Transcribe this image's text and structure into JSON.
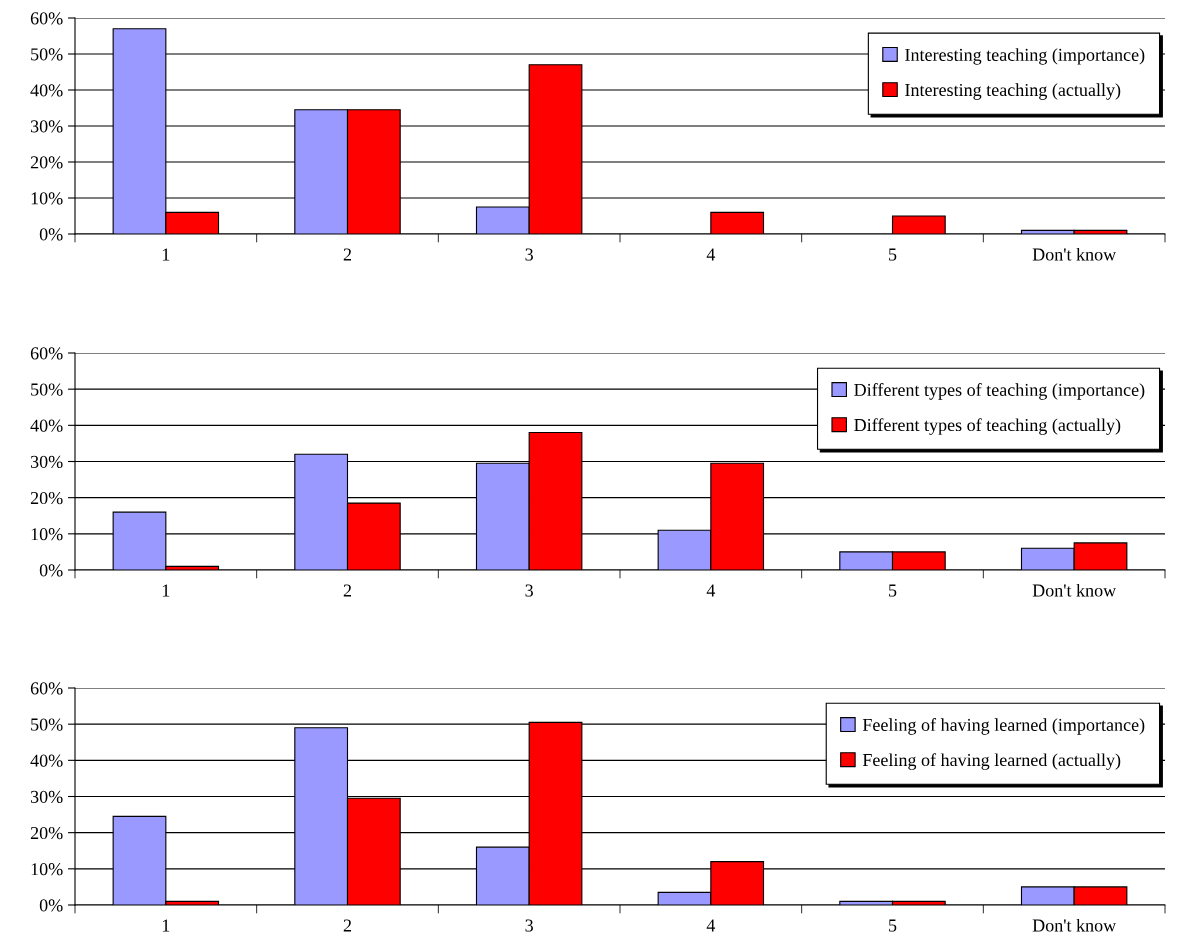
{
  "chart_data": [
    {
      "type": "bar",
      "categories": [
        "1",
        "2",
        "3",
        "4",
        "5",
        "Don't know"
      ],
      "ylim": [
        0,
        60
      ],
      "yticks": [
        {
          "value": 0,
          "label": "0%"
        },
        {
          "value": 10,
          "label": "10%"
        },
        {
          "value": 20,
          "label": "20%"
        },
        {
          "value": 30,
          "label": "30%"
        },
        {
          "value": 40,
          "label": "40%"
        },
        {
          "value": 50,
          "label": "50%"
        },
        {
          "value": 60,
          "label": "60%"
        }
      ],
      "grid": "y",
      "legend": "top right",
      "series": [
        {
          "name": "Interesting teaching (importance)",
          "color": "#9999ff",
          "values": [
            57,
            34.5,
            7.5,
            0,
            0,
            1
          ]
        },
        {
          "name": "Interesting teaching (actually)",
          "color": "#ff0000",
          "values": [
            6,
            34.5,
            47,
            6,
            5,
            1
          ]
        }
      ]
    },
    {
      "type": "bar",
      "categories": [
        "1",
        "2",
        "3",
        "4",
        "5",
        "Don't know"
      ],
      "ylim": [
        0,
        60
      ],
      "yticks": [
        {
          "value": 0,
          "label": "0%"
        },
        {
          "value": 10,
          "label": "10%"
        },
        {
          "value": 20,
          "label": "20%"
        },
        {
          "value": 30,
          "label": "30%"
        },
        {
          "value": 40,
          "label": "40%"
        },
        {
          "value": 50,
          "label": "50%"
        },
        {
          "value": 60,
          "label": "60%"
        }
      ],
      "grid": "y",
      "legend": "top right",
      "series": [
        {
          "name": "Different types of teaching (importance)",
          "color": "#9999ff",
          "values": [
            16,
            32,
            29.5,
            11,
            5,
            6
          ]
        },
        {
          "name": "Different types of teaching (actually)",
          "color": "#ff0000",
          "values": [
            1,
            18.5,
            38,
            29.5,
            5,
            7.5
          ]
        }
      ]
    },
    {
      "type": "bar",
      "categories": [
        "1",
        "2",
        "3",
        "4",
        "5",
        "Don't know"
      ],
      "ylim": [
        0,
        60
      ],
      "yticks": [
        {
          "value": 0,
          "label": "0%"
        },
        {
          "value": 10,
          "label": "10%"
        },
        {
          "value": 20,
          "label": "20%"
        },
        {
          "value": 30,
          "label": "30%"
        },
        {
          "value": 40,
          "label": "40%"
        },
        {
          "value": 50,
          "label": "50%"
        },
        {
          "value": 60,
          "label": "60%"
        }
      ],
      "grid": "y",
      "legend": "top right",
      "series": [
        {
          "name": "Feeling of having learned (importance)",
          "color": "#9999ff",
          "values": [
            24.5,
            49,
            16,
            3.5,
            1,
            5
          ]
        },
        {
          "name": "Feeling of having learned (actually)",
          "color": "#ff0000",
          "values": [
            1,
            29.5,
            50.5,
            12,
            1,
            5
          ]
        }
      ]
    }
  ]
}
